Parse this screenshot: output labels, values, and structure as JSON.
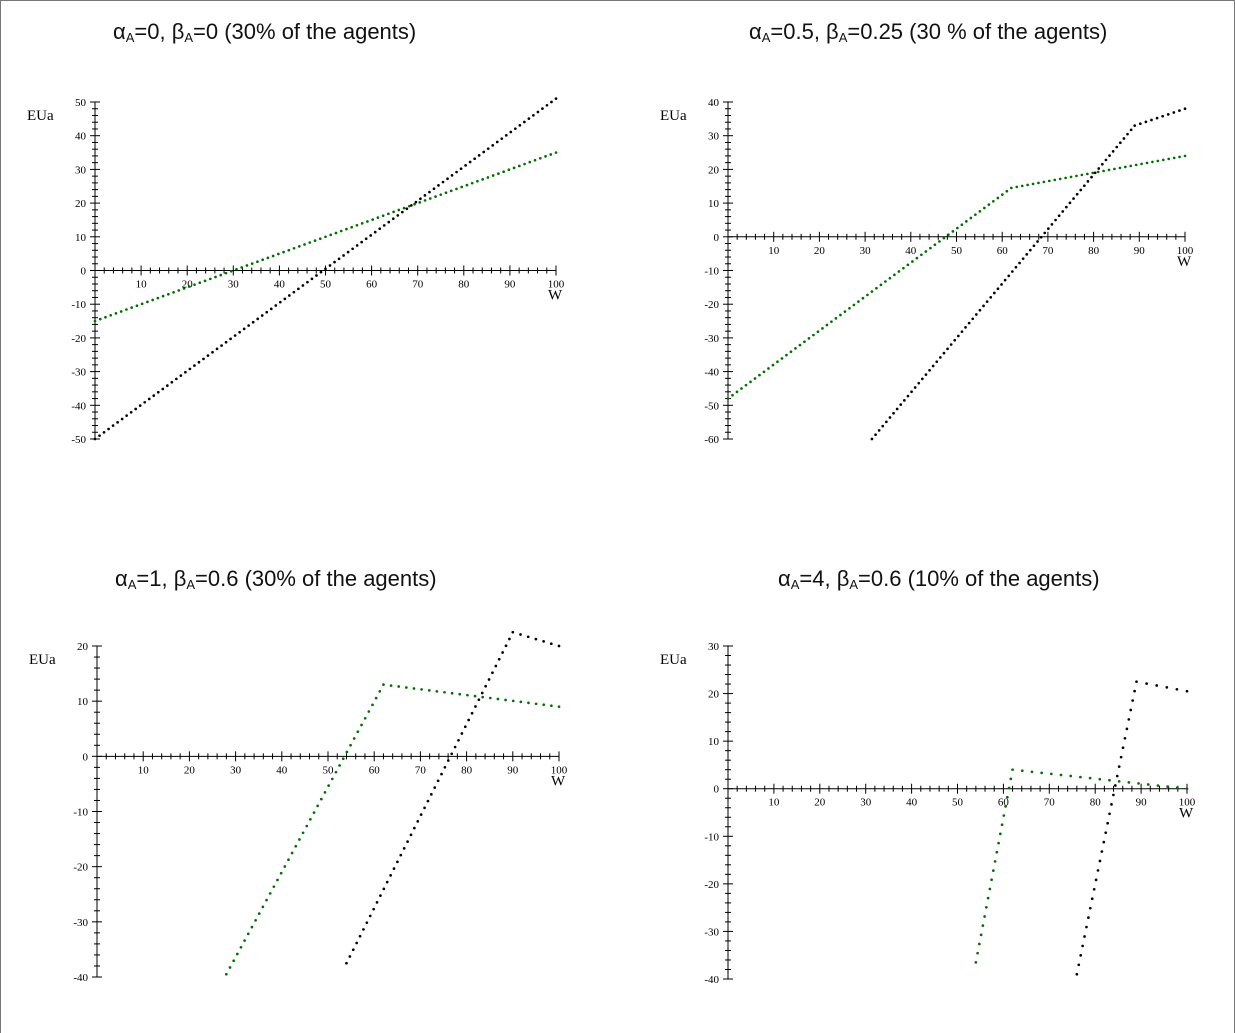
{
  "chart_data": [
    {
      "type": "scatter",
      "title": {
        "alpha_label": "α",
        "alpha_sub": "A",
        "alpha_val": "=0, ",
        "beta_label": "β",
        "beta_sub": "A",
        "beta_val": "=0 (30% of the agents)"
      },
      "xlabel": "W",
      "ylabel": "EUa",
      "xlim": [
        0,
        100
      ],
      "ylim": [
        -50,
        50
      ],
      "xticks": [
        10,
        20,
        30,
        40,
        50,
        60,
        70,
        80,
        90,
        100
      ],
      "yticks": [
        -50,
        -40,
        -30,
        -20,
        -10,
        0,
        10,
        20,
        30,
        40,
        50
      ],
      "series": [
        {
          "color": "#006f00",
          "points": [
            [
              0,
              -15
            ],
            [
              100,
              35
            ]
          ]
        },
        {
          "color": "#000000",
          "points": [
            [
              0,
              -50
            ],
            [
              100,
              51
            ]
          ]
        }
      ]
    },
    {
      "type": "scatter",
      "title": {
        "alpha_label": "α",
        "alpha_sub": "A",
        "alpha_val": "=0.5, ",
        "beta_label": "β",
        "beta_sub": "A",
        "beta_val": "=0.25 (30 % of the agents)"
      },
      "xlabel": "W",
      "ylabel": "EUa",
      "xlim": [
        0,
        100
      ],
      "ylim": [
        -60,
        40
      ],
      "xticks": [
        10,
        20,
        30,
        40,
        50,
        60,
        70,
        80,
        90,
        100
      ],
      "yticks": [
        -60,
        -50,
        -40,
        -30,
        -20,
        -10,
        0,
        10,
        20,
        30,
        40
      ],
      "series": [
        {
          "color": "#006f00",
          "points": [
            [
              0,
              -48
            ],
            [
              62,
              14.5
            ],
            [
              100,
              24
            ]
          ]
        },
        {
          "color": "#000000",
          "points": [
            [
              31.5,
              -60
            ],
            [
              89,
              33
            ],
            [
              100,
              38
            ]
          ]
        }
      ]
    },
    {
      "type": "scatter",
      "title": {
        "alpha_label": "α",
        "alpha_sub": "A",
        "alpha_val": "=1, ",
        "beta_label": "β",
        "beta_sub": "A",
        "beta_val": "=0.6 (30% of the agents)"
      },
      "xlabel": "W",
      "ylabel": "EUa",
      "xlim": [
        0,
        100
      ],
      "ylim": [
        -40,
        20
      ],
      "xticks": [
        10,
        20,
        30,
        40,
        50,
        60,
        70,
        80,
        90,
        100
      ],
      "yticks": [
        -40,
        -30,
        -20,
        -10,
        0,
        10,
        20
      ],
      "series": [
        {
          "color": "#006f00",
          "points": [
            [
              28,
              -39.5
            ],
            [
              62,
              13
            ],
            [
              100,
              9
            ]
          ]
        },
        {
          "color": "#000000",
          "points": [
            [
              54,
              -37.5
            ],
            [
              90,
              22.5
            ],
            [
              100,
              20
            ]
          ]
        }
      ]
    },
    {
      "type": "scatter",
      "title": {
        "alpha_label": "α",
        "alpha_sub": "A",
        "alpha_val": "=4, ",
        "beta_label": "β",
        "beta_sub": "A",
        "beta_val": "=0.6 (10% of the agents)"
      },
      "xlabel": "W",
      "ylabel": "EUa",
      "xlim": [
        0,
        100
      ],
      "ylim": [
        -40,
        30
      ],
      "xticks": [
        10,
        20,
        30,
        40,
        50,
        60,
        70,
        80,
        90,
        100
      ],
      "yticks": [
        -40,
        -30,
        -20,
        -10,
        0,
        10,
        20,
        30
      ],
      "series": [
        {
          "color": "#006f00",
          "points": [
            [
              54,
              -36.5
            ],
            [
              62,
              4
            ],
            [
              100,
              0
            ]
          ]
        },
        {
          "color": "#000000",
          "points": [
            [
              76,
              -39
            ],
            [
              89,
              22.5
            ],
            [
              100,
              20.5
            ]
          ]
        }
      ]
    }
  ]
}
